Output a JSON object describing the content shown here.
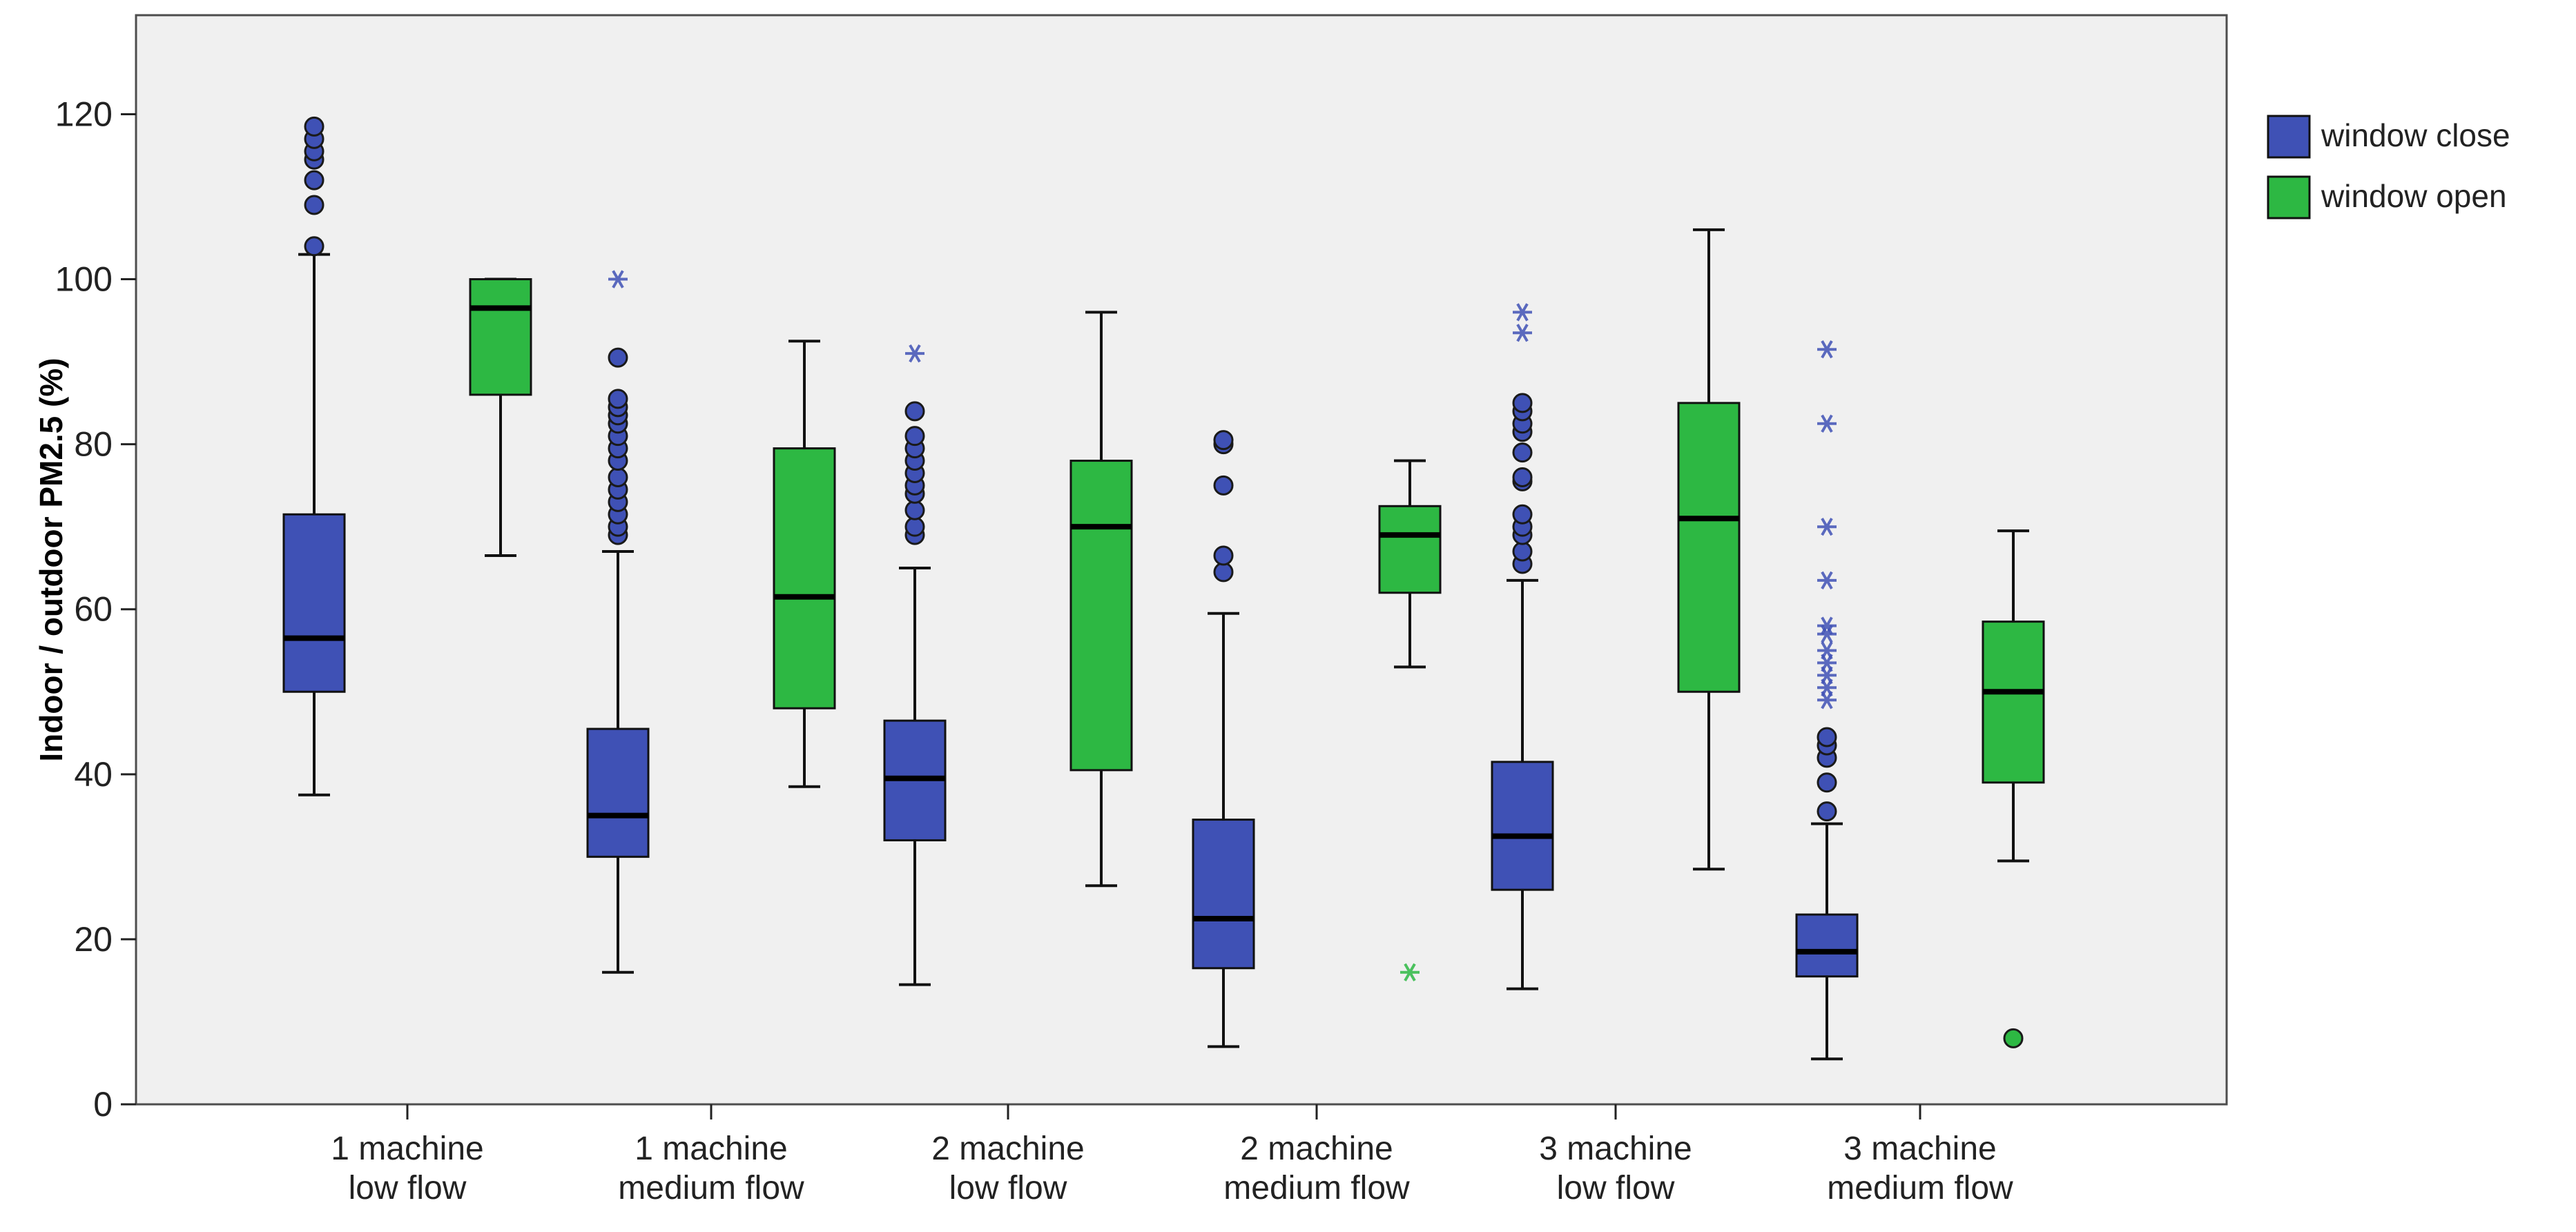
{
  "chart_data": {
    "type": "boxplot",
    "title": "",
    "xlabel": "",
    "ylabel": "Indoor / outdoor PM2.5 (%)",
    "ylim": [
      0,
      132
    ],
    "yticks": [
      0,
      20,
      40,
      60,
      80,
      100,
      120
    ],
    "grid": false,
    "legend_position": "right",
    "categories": [
      [
        "1 machine",
        "low flow"
      ],
      [
        "1 machine",
        "medium flow"
      ],
      [
        "2 machine",
        "low flow"
      ],
      [
        "2 machine",
        "medium flow"
      ],
      [
        "3 machine",
        "low flow"
      ],
      [
        "3 machine",
        "medium flow"
      ]
    ],
    "series": [
      {
        "name": "window close",
        "color": "#3f51b5",
        "boxes": [
          {
            "q1": 50,
            "median": 56.5,
            "q3": 71.5,
            "whisker_low": 37.5,
            "whisker_high": 103,
            "outliers": [
              104,
              109,
              112,
              114.5,
              115.5,
              117,
              118.5
            ],
            "extremes": []
          },
          {
            "q1": 30,
            "median": 35,
            "q3": 45.5,
            "whisker_low": 16,
            "whisker_high": 67,
            "outliers": [
              69,
              70,
              71.5,
              73,
              74.5,
              76,
              78,
              79.5,
              81,
              82.5,
              83.5,
              84.5,
              85.5,
              90.5
            ],
            "extremes": [
              100
            ]
          },
          {
            "q1": 32,
            "median": 39.5,
            "q3": 46.5,
            "whisker_low": 14.5,
            "whisker_high": 65,
            "outliers": [
              69,
              70,
              72,
              74,
              75,
              76.5,
              78,
              79.5,
              81,
              84
            ],
            "extremes": [
              91
            ]
          },
          {
            "q1": 16.5,
            "median": 22.5,
            "q3": 34.5,
            "whisker_low": 7,
            "whisker_high": 59.5,
            "outliers": [
              64.5,
              66.5,
              75,
              80,
              80.5
            ],
            "extremes": []
          },
          {
            "q1": 26,
            "median": 32.5,
            "q3": 41.5,
            "whisker_low": 14,
            "whisker_high": 63.5,
            "outliers": [
              65.5,
              67,
              69,
              70,
              71.5,
              75.5,
              76,
              79,
              81.5,
              82.5,
              84,
              85
            ],
            "extremes": [
              93.5,
              96
            ]
          },
          {
            "q1": 15.5,
            "median": 18.5,
            "q3": 23,
            "whisker_low": 5.5,
            "whisker_high": 34,
            "outliers": [
              35.5,
              39,
              42,
              43.5,
              44.5
            ],
            "extremes": [
              49,
              50.5,
              52,
              53.5,
              55,
              57,
              58,
              63.5,
              70,
              82.5,
              91.5
            ]
          }
        ]
      },
      {
        "name": "window open",
        "color": "#2db843",
        "boxes": [
          {
            "q1": 86,
            "median": 96.5,
            "q3": 100,
            "whisker_low": 66.5,
            "whisker_high": 100,
            "outliers": [],
            "extremes": []
          },
          {
            "q1": 48,
            "median": 61.5,
            "q3": 79.5,
            "whisker_low": 38.5,
            "whisker_high": 92.5,
            "outliers": [],
            "extremes": []
          },
          {
            "q1": 40.5,
            "median": 70,
            "q3": 78,
            "whisker_low": 26.5,
            "whisker_high": 96,
            "outliers": [],
            "extremes": []
          },
          {
            "q1": 62,
            "median": 69,
            "q3": 72.5,
            "whisker_low": 53,
            "whisker_high": 78,
            "outliers": [],
            "extremes": [
              16
            ]
          },
          {
            "q1": 50,
            "median": 71,
            "q3": 85,
            "whisker_low": 28.5,
            "whisker_high": 106,
            "outliers": [],
            "extremes": []
          },
          {
            "q1": 39,
            "median": 50,
            "q3": 58.5,
            "whisker_low": 29.5,
            "whisker_high": 69.5,
            "outliers": [
              8
            ],
            "extremes": []
          }
        ]
      }
    ]
  }
}
